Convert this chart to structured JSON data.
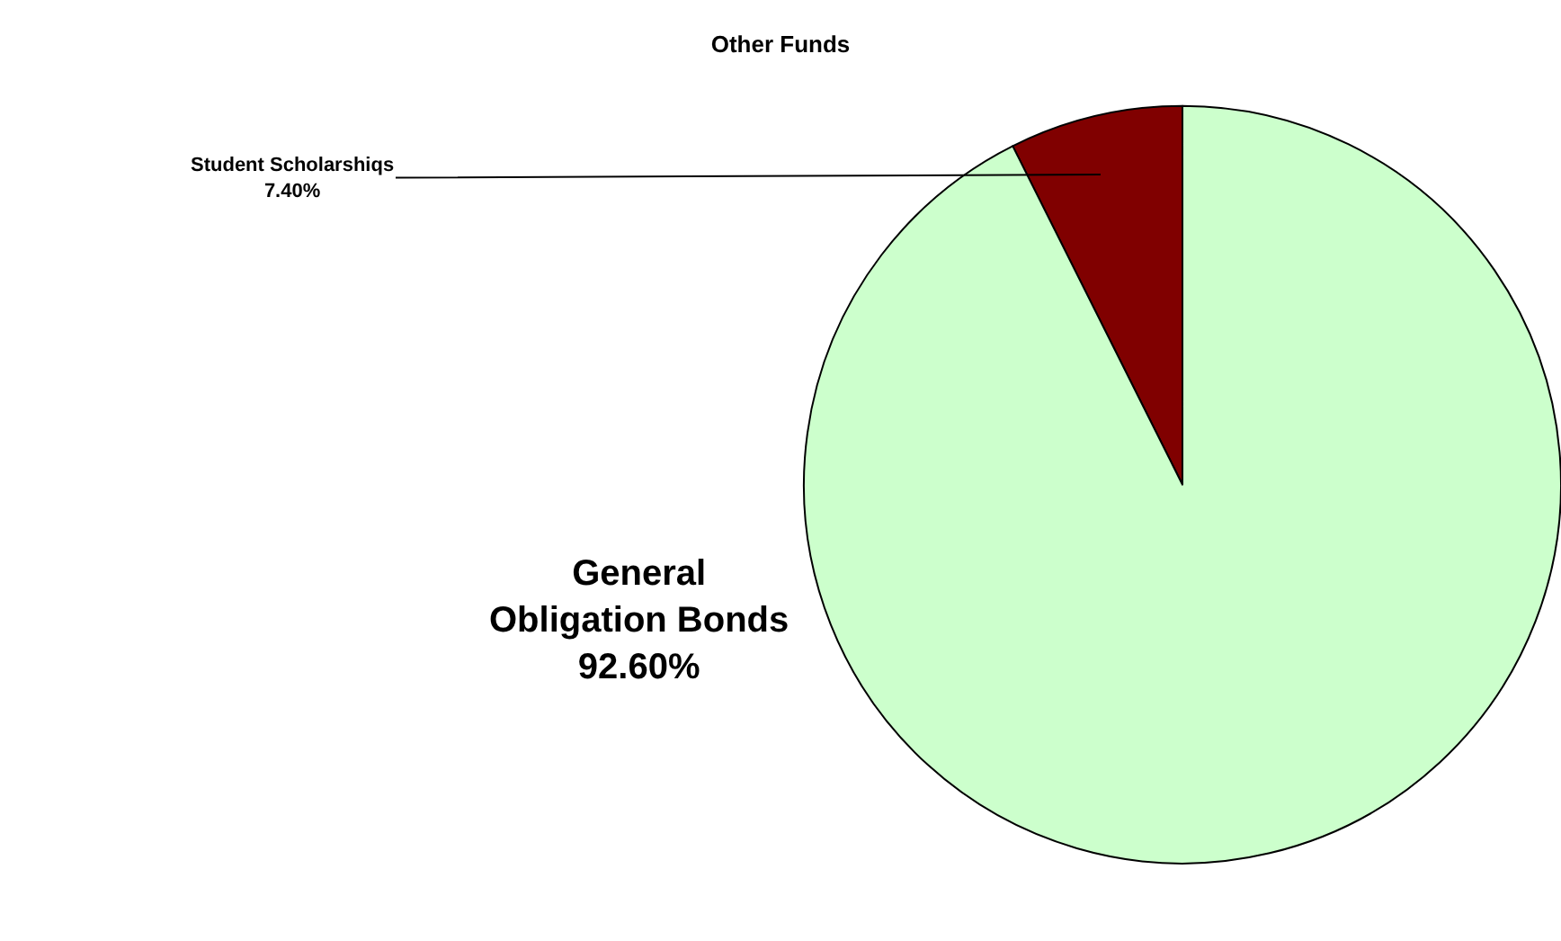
{
  "chart_data": {
    "type": "pie",
    "title": "Other Funds",
    "categories": [
      "Student Scholarshiqs",
      "General Obligation Bonds"
    ],
    "values": [
      7.4,
      92.6
    ],
    "value_labels": [
      "7.40%",
      "92.60%"
    ],
    "colors": [
      "#800000",
      "#ccffcc"
    ],
    "legend": false
  }
}
